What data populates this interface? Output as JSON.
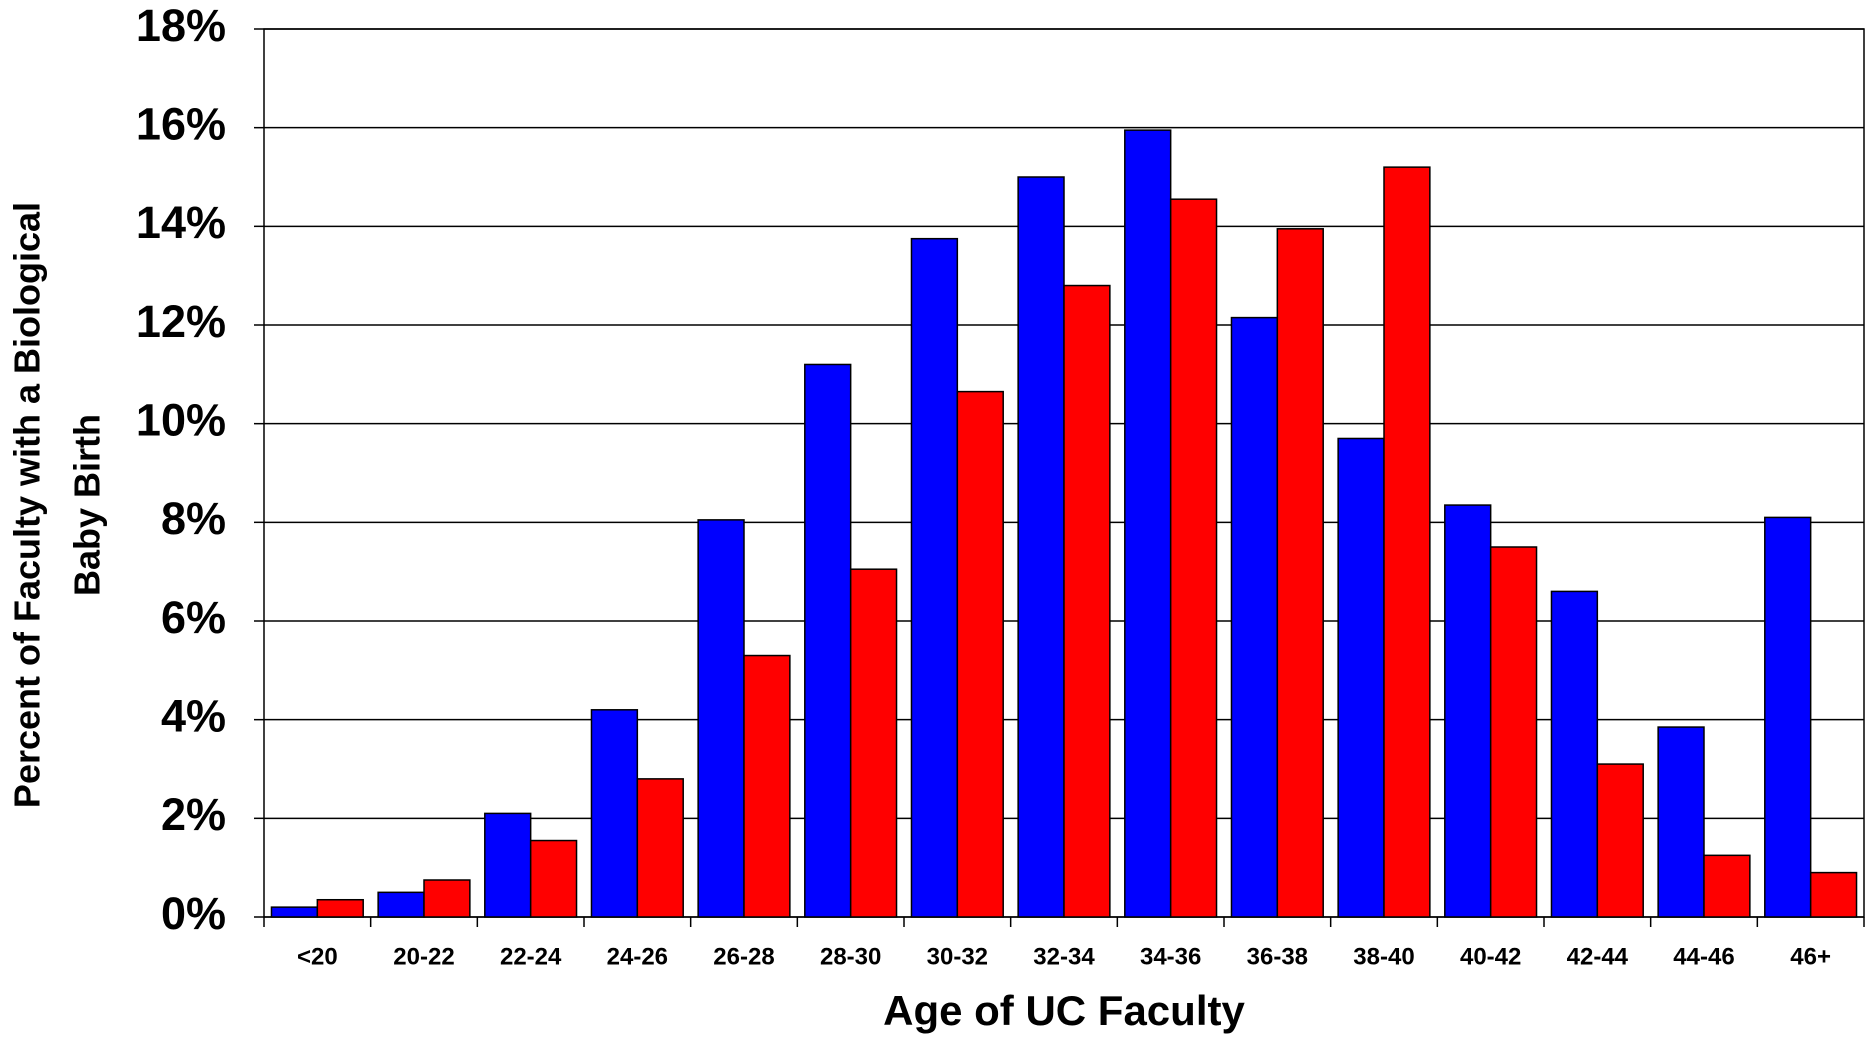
{
  "chart_data": {
    "type": "bar",
    "xlabel": "Age of UC Faculty",
    "ylabel": [
      "Percent of Faculty with a Biological",
      "Baby Birth"
    ],
    "categories": [
      "<20",
      "20-22",
      "22-24",
      "24-26",
      "26-28",
      "28-30",
      "30-32",
      "32-34",
      "34-36",
      "36-38",
      "38-40",
      "40-42",
      "42-44",
      "44-46",
      "46+"
    ],
    "series": [
      {
        "color": "#0000ff",
        "values": [
          0.2,
          0.5,
          2.1,
          4.2,
          8.05,
          11.2,
          13.75,
          15.0,
          15.95,
          12.15,
          9.7,
          8.35,
          6.6,
          3.85,
          8.1
        ]
      },
      {
        "color": "#ff0000",
        "values": [
          0.35,
          0.75,
          1.55,
          2.8,
          5.3,
          7.05,
          10.65,
          12.8,
          14.55,
          13.95,
          15.2,
          7.5,
          3.1,
          1.25,
          0.9
        ]
      }
    ],
    "ylim": [
      0,
      18
    ],
    "yticks": [
      {
        "value": 0,
        "label": "0%"
      },
      {
        "value": 2,
        "label": "2%"
      },
      {
        "value": 4,
        "label": "4%"
      },
      {
        "value": 6,
        "label": "6%"
      },
      {
        "value": 8,
        "label": "8%"
      },
      {
        "value": 10,
        "label": "10%"
      },
      {
        "value": 12,
        "label": "12%"
      },
      {
        "value": 14,
        "label": "14%"
      },
      {
        "value": 16,
        "label": "16%"
      },
      {
        "value": 18,
        "label": "18%"
      }
    ],
    "grid": true
  }
}
